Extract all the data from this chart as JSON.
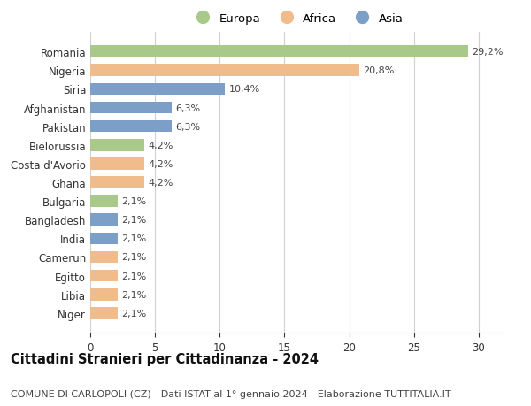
{
  "countries": [
    "Romania",
    "Nigeria",
    "Siria",
    "Afghanistan",
    "Pakistan",
    "Bielorussia",
    "Costa d'Avorio",
    "Ghana",
    "Bulgaria",
    "Bangladesh",
    "India",
    "Camerun",
    "Egitto",
    "Libia",
    "Niger"
  ],
  "values": [
    29.2,
    20.8,
    10.4,
    6.3,
    6.3,
    4.2,
    4.2,
    4.2,
    2.1,
    2.1,
    2.1,
    2.1,
    2.1,
    2.1,
    2.1
  ],
  "labels": [
    "29,2%",
    "20,8%",
    "10,4%",
    "6,3%",
    "6,3%",
    "4,2%",
    "4,2%",
    "4,2%",
    "2,1%",
    "2,1%",
    "2,1%",
    "2,1%",
    "2,1%",
    "2,1%",
    "2,1%"
  ],
  "continents": [
    "Europa",
    "Africa",
    "Asia",
    "Asia",
    "Asia",
    "Europa",
    "Africa",
    "Africa",
    "Europa",
    "Asia",
    "Asia",
    "Africa",
    "Africa",
    "Africa",
    "Africa"
  ],
  "colors": {
    "Europa": "#a8c98a",
    "Africa": "#f0bc8c",
    "Asia": "#7b9fc7"
  },
  "legend_labels": [
    "Europa",
    "Africa",
    "Asia"
  ],
  "title": "Cittadini Stranieri per Cittadinanza - 2024",
  "subtitle": "COMUNE DI CARLOPOLI (CZ) - Dati ISTAT al 1° gennaio 2024 - Elaborazione TUTTITALIA.IT",
  "xlim": [
    0,
    32
  ],
  "xticks": [
    0,
    5,
    10,
    15,
    20,
    25,
    30
  ],
  "background_color": "#ffffff",
  "grid_color": "#d0d0d0",
  "bar_height": 0.65,
  "title_fontsize": 10.5,
  "subtitle_fontsize": 8,
  "tick_fontsize": 8.5,
  "label_fontsize": 8,
  "legend_fontsize": 9.5
}
